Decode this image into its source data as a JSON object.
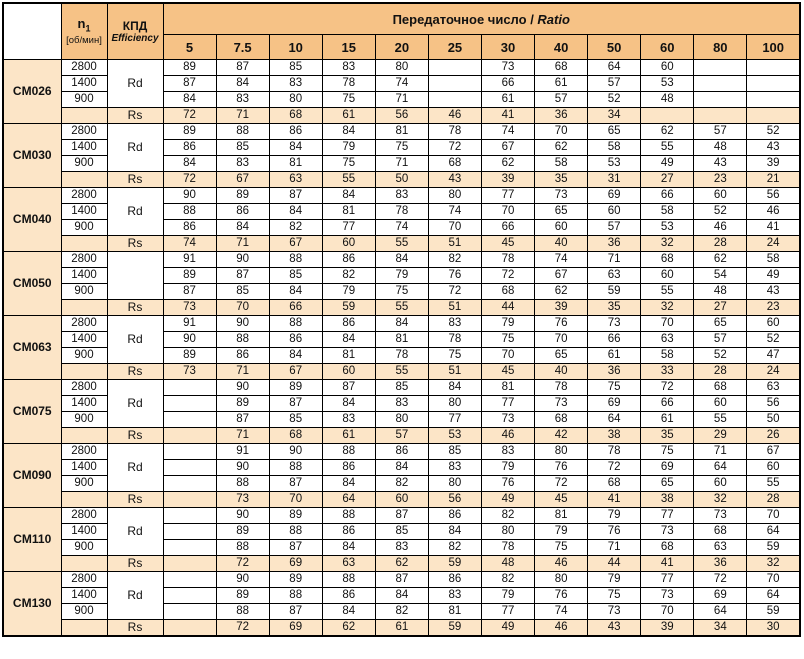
{
  "colors": {
    "header_bg": "#f6c286",
    "row_bg": "#fce5c7",
    "border": "#000000"
  },
  "header": {
    "n1_label": "n",
    "n1_sub": "1",
    "n1_unit": "[об/мин]",
    "kpd_label": "КПД",
    "kpd_sub": "Efficiency",
    "ratio_label": "Передаточное число / ",
    "ratio_italic": "Ratio",
    "ratio_columns": [
      "5",
      "7.5",
      "10",
      "15",
      "20",
      "25",
      "30",
      "40",
      "50",
      "60",
      "80",
      "100"
    ]
  },
  "groups": [
    {
      "model": "CM026",
      "rd_label": "Rd",
      "rs_label": "Rs",
      "rows": [
        {
          "rpm": "2800",
          "values": [
            "89",
            "87",
            "85",
            "83",
            "80",
            "",
            "73",
            "68",
            "64",
            "60",
            "",
            ""
          ]
        },
        {
          "rpm": "1400",
          "values": [
            "87",
            "84",
            "83",
            "78",
            "74",
            "",
            "66",
            "61",
            "57",
            "53",
            "",
            ""
          ]
        },
        {
          "rpm": "900",
          "values": [
            "84",
            "83",
            "80",
            "75",
            "71",
            "",
            "61",
            "57",
            "52",
            "48",
            "",
            ""
          ]
        }
      ],
      "rs_values": [
        "72",
        "71",
        "68",
        "61",
        "56",
        "46",
        "41",
        "36",
        "34",
        "",
        "",
        ""
      ]
    },
    {
      "model": "CM030",
      "rd_label": "Rd",
      "rs_label": "Rs",
      "rows": [
        {
          "rpm": "2800",
          "values": [
            "89",
            "88",
            "86",
            "84",
            "81",
            "78",
            "74",
            "70",
            "65",
            "62",
            "57",
            "52"
          ]
        },
        {
          "rpm": "1400",
          "values": [
            "86",
            "85",
            "84",
            "79",
            "75",
            "72",
            "67",
            "62",
            "58",
            "55",
            "48",
            "43"
          ]
        },
        {
          "rpm": "900",
          "values": [
            "84",
            "83",
            "81",
            "75",
            "71",
            "68",
            "62",
            "58",
            "53",
            "49",
            "43",
            "39"
          ]
        }
      ],
      "rs_values": [
        "72",
        "67",
        "63",
        "55",
        "50",
        "43",
        "39",
        "35",
        "31",
        "27",
        "23",
        "21"
      ]
    },
    {
      "model": "CM040",
      "rd_label": "Rd",
      "rs_label": "Rs",
      "rows": [
        {
          "rpm": "2800",
          "values": [
            "90",
            "89",
            "87",
            "84",
            "83",
            "80",
            "77",
            "73",
            "69",
            "66",
            "60",
            "56"
          ]
        },
        {
          "rpm": "1400",
          "values": [
            "88",
            "86",
            "84",
            "81",
            "78",
            "74",
            "70",
            "65",
            "60",
            "58",
            "52",
            "46"
          ]
        },
        {
          "rpm": "900",
          "values": [
            "86",
            "84",
            "82",
            "77",
            "74",
            "70",
            "66",
            "60",
            "57",
            "53",
            "46",
            "41"
          ]
        }
      ],
      "rs_values": [
        "74",
        "71",
        "67",
        "60",
        "55",
        "51",
        "45",
        "40",
        "36",
        "32",
        "28",
        "24"
      ]
    },
    {
      "model": "CM050",
      "rd_label": "",
      "rs_label": "Rs",
      "rows": [
        {
          "rpm": "2800",
          "values": [
            "91",
            "90",
            "88",
            "86",
            "84",
            "82",
            "78",
            "74",
            "71",
            "68",
            "62",
            "58"
          ]
        },
        {
          "rpm": "1400",
          "values": [
            "89",
            "87",
            "85",
            "82",
            "79",
            "76",
            "72",
            "67",
            "63",
            "60",
            "54",
            "49"
          ]
        },
        {
          "rpm": "900",
          "values": [
            "87",
            "85",
            "84",
            "79",
            "75",
            "72",
            "68",
            "62",
            "59",
            "55",
            "48",
            "43"
          ]
        }
      ],
      "rs_values": [
        "73",
        "70",
        "66",
        "59",
        "55",
        "51",
        "44",
        "39",
        "35",
        "32",
        "27",
        "23"
      ]
    },
    {
      "model": "CM063",
      "rd_label": "Rd",
      "rs_label": "Rs",
      "rows": [
        {
          "rpm": "2800",
          "values": [
            "91",
            "90",
            "88",
            "86",
            "84",
            "83",
            "79",
            "76",
            "73",
            "70",
            "65",
            "60"
          ]
        },
        {
          "rpm": "1400",
          "values": [
            "90",
            "88",
            "86",
            "84",
            "81",
            "78",
            "75",
            "70",
            "66",
            "63",
            "57",
            "52"
          ]
        },
        {
          "rpm": "900",
          "values": [
            "89",
            "86",
            "84",
            "81",
            "78",
            "75",
            "70",
            "65",
            "61",
            "58",
            "52",
            "47"
          ]
        }
      ],
      "rs_values": [
        "73",
        "71",
        "67",
        "60",
        "55",
        "51",
        "45",
        "40",
        "36",
        "33",
        "28",
        "24"
      ]
    },
    {
      "model": "CM075",
      "rd_label": "Rd",
      "rs_label": "Rs",
      "rows": [
        {
          "rpm": "2800",
          "values": [
            "",
            "90",
            "89",
            "87",
            "85",
            "84",
            "81",
            "78",
            "75",
            "72",
            "68",
            "63"
          ]
        },
        {
          "rpm": "1400",
          "values": [
            "",
            "89",
            "87",
            "84",
            "83",
            "80",
            "77",
            "73",
            "69",
            "66",
            "60",
            "56"
          ]
        },
        {
          "rpm": "900",
          "values": [
            "",
            "87",
            "85",
            "83",
            "80",
            "77",
            "73",
            "68",
            "64",
            "61",
            "55",
            "50"
          ]
        }
      ],
      "rs_values": [
        "",
        "71",
        "68",
        "61",
        "57",
        "53",
        "46",
        "42",
        "38",
        "35",
        "29",
        "26"
      ]
    },
    {
      "model": "CM090",
      "rd_label": "Rd",
      "rs_label": "Rs",
      "rows": [
        {
          "rpm": "2800",
          "values": [
            "",
            "91",
            "90",
            "88",
            "86",
            "85",
            "83",
            "80",
            "78",
            "75",
            "71",
            "67"
          ]
        },
        {
          "rpm": "1400",
          "values": [
            "",
            "90",
            "88",
            "86",
            "84",
            "83",
            "79",
            "76",
            "72",
            "69",
            "64",
            "60"
          ]
        },
        {
          "rpm": "900",
          "values": [
            "",
            "88",
            "87",
            "84",
            "82",
            "80",
            "76",
            "72",
            "68",
            "65",
            "60",
            "55"
          ]
        }
      ],
      "rs_values": [
        "",
        "73",
        "70",
        "64",
        "60",
        "56",
        "49",
        "45",
        "41",
        "38",
        "32",
        "28"
      ]
    },
    {
      "model": "CM110",
      "rd_label": "Rd",
      "rs_label": "Rs",
      "rows": [
        {
          "rpm": "2800",
          "values": [
            "",
            "90",
            "89",
            "88",
            "87",
            "86",
            "82",
            "81",
            "79",
            "77",
            "73",
            "70"
          ]
        },
        {
          "rpm": "1400",
          "values": [
            "",
            "89",
            "88",
            "86",
            "85",
            "84",
            "80",
            "79",
            "76",
            "73",
            "68",
            "64"
          ]
        },
        {
          "rpm": "900",
          "values": [
            "",
            "88",
            "87",
            "84",
            "83",
            "82",
            "78",
            "75",
            "71",
            "68",
            "63",
            "59"
          ]
        }
      ],
      "rs_values": [
        "",
        "72",
        "69",
        "63",
        "62",
        "59",
        "48",
        "46",
        "44",
        "41",
        "36",
        "32"
      ]
    },
    {
      "model": "CM130",
      "rd_label": "Rd",
      "rs_label": "Rs",
      "rows": [
        {
          "rpm": "2800",
          "values": [
            "",
            "90",
            "89",
            "88",
            "87",
            "86",
            "82",
            "80",
            "79",
            "77",
            "72",
            "70"
          ]
        },
        {
          "rpm": "1400",
          "values": [
            "",
            "89",
            "88",
            "86",
            "84",
            "83",
            "79",
            "76",
            "75",
            "73",
            "69",
            "64"
          ]
        },
        {
          "rpm": "900",
          "values": [
            "",
            "88",
            "87",
            "84",
            "82",
            "81",
            "77",
            "74",
            "73",
            "70",
            "64",
            "59"
          ]
        }
      ],
      "rs_values": [
        "",
        "72",
        "69",
        "62",
        "61",
        "59",
        "49",
        "46",
        "43",
        "39",
        "34",
        "30"
      ]
    }
  ]
}
